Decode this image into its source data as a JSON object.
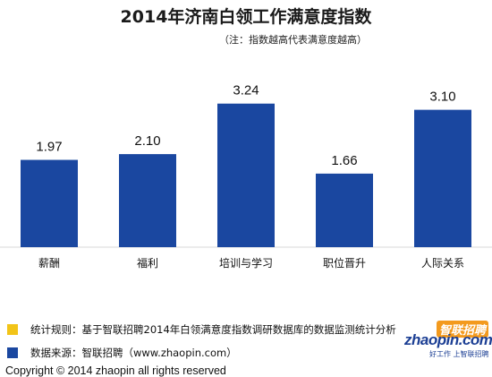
{
  "title": "2014年济南白领工作满意度指数",
  "note": "（注：指数越高代表满意度越高）",
  "chart_data": {
    "type": "bar",
    "title": "2014年济南白领工作满意度指数",
    "categories": [
      "薪酬",
      "福利",
      "培训与学习",
      "职位晋升",
      "人际关系"
    ],
    "values": [
      1.97,
      2.1,
      3.24,
      1.66,
      3.1
    ],
    "value_labels": [
      "1.97",
      "2.10",
      "3.24",
      "1.66",
      "3.10"
    ],
    "ylim": [
      0,
      3.8
    ],
    "grid": false,
    "bar_color": "#1a47a0"
  },
  "legend": {
    "rule_color": "#f2c418",
    "rule_text": "统计规则：基于智联招聘2014年白领满意度指数调研数据库的数据监测统计分析",
    "source_color": "#1a47a0",
    "source_text": "数据来源：智联招聘（www.zhaopin.com）"
  },
  "copyright": "Copyright © 2014 zhaopin all rights reserved",
  "logo": {
    "main": "zhaopin.com",
    "cn": "智联招聘",
    "slogan": "好工作 上智联招聘"
  }
}
